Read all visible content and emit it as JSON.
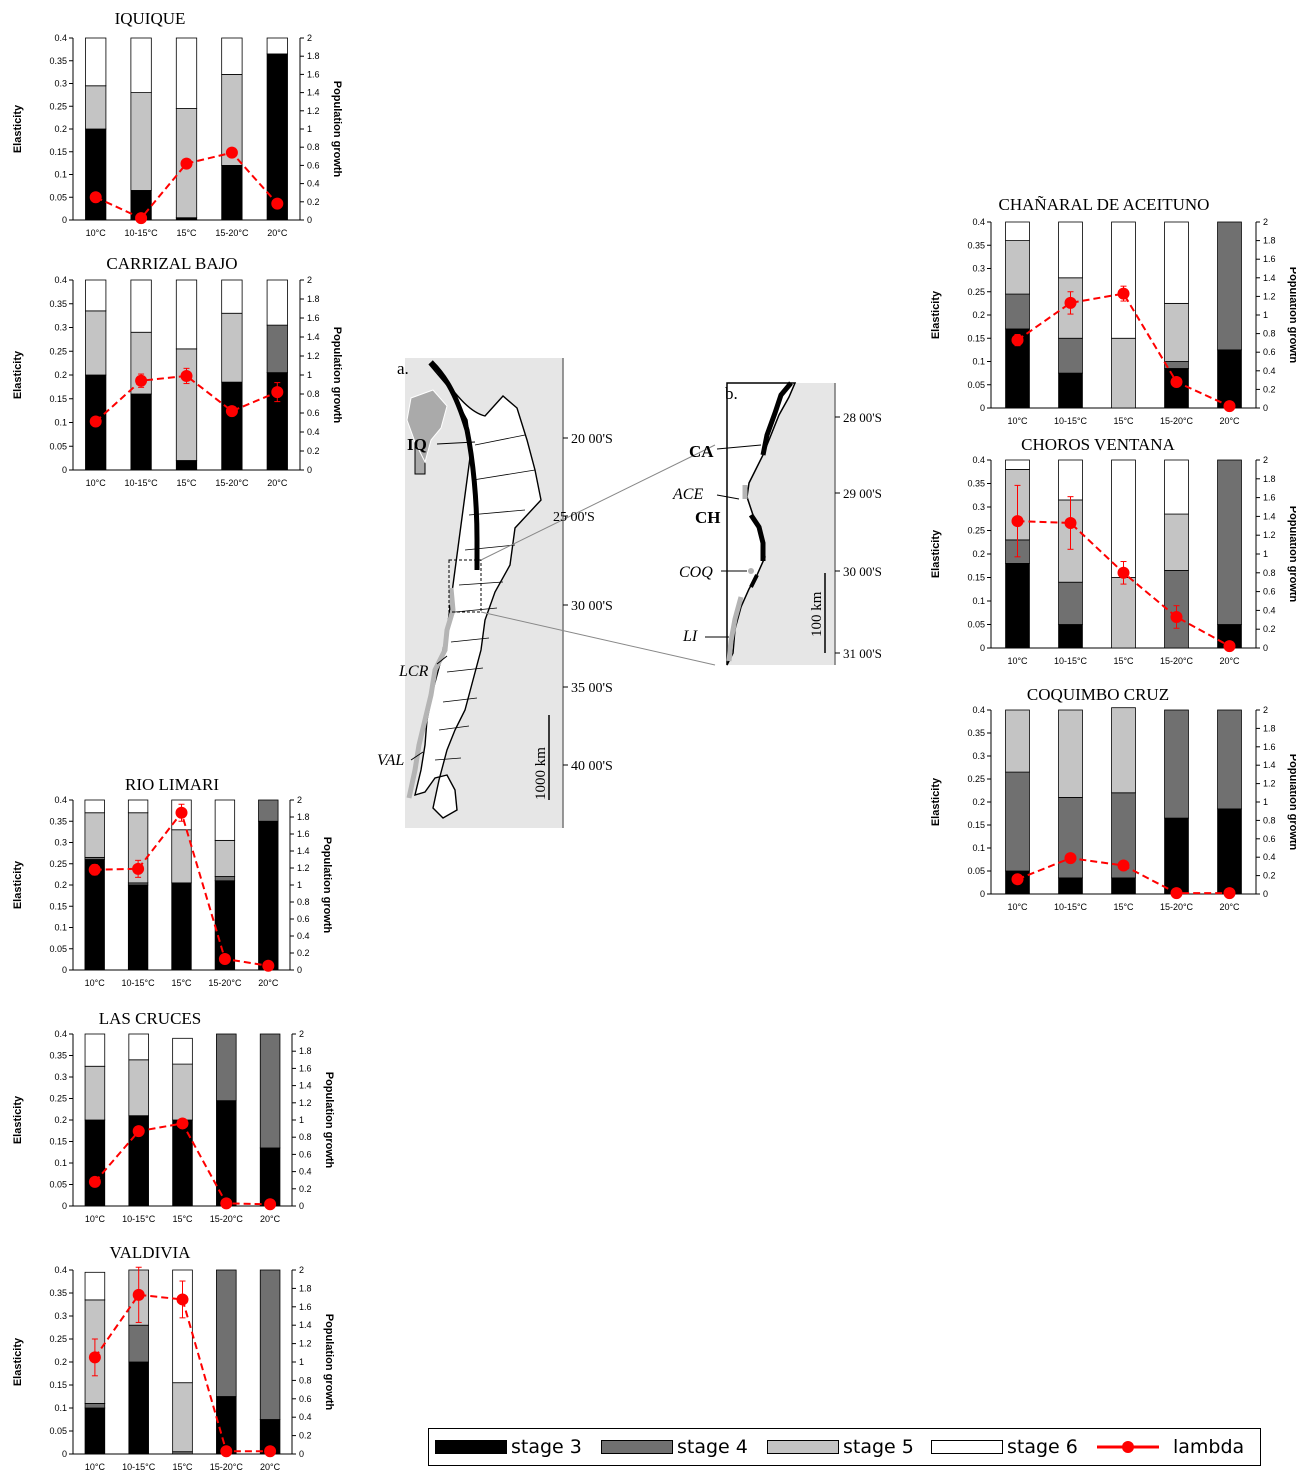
{
  "chart_data": [
    {
      "type": "bar",
      "title": "IQUIQUE",
      "categories": [
        "10°C",
        "10-15°C",
        "15°C",
        "15-20°C",
        "20°C"
      ],
      "ylabel": "Elasticity",
      "y2label": "Population growth",
      "ylim": [
        0,
        0.4
      ],
      "y2lim": [
        0,
        2
      ],
      "yticks": [
        "0",
        "0.05",
        "0.1",
        "0.15",
        "0.2",
        "0.25",
        "0.3",
        "0.35",
        "0.4"
      ],
      "y2ticks": [
        "0",
        "0.2",
        "0.4",
        "0.6",
        "0.8",
        "1",
        "1.2",
        "1.4",
        "1.6",
        "1.8",
        "2"
      ],
      "stacked": true,
      "series": [
        {
          "name": "stage 3",
          "values": [
            0.2,
            0.065,
            0.005,
            0.12,
            0.365
          ]
        },
        {
          "name": "stage 4",
          "values": [
            0.0,
            0.0,
            0.0,
            0.0,
            0.0
          ]
        },
        {
          "name": "stage 5",
          "values": [
            0.095,
            0.215,
            0.24,
            0.2,
            0.0
          ]
        },
        {
          "name": "stage 6",
          "values": [
            0.105,
            0.12,
            0.155,
            0.08,
            0.035
          ]
        }
      ],
      "lambda": {
        "name": "lambda",
        "values": [
          0.25,
          0.02,
          0.62,
          0.74,
          0.18
        ],
        "errors": [
          0,
          0,
          0,
          0,
          0
        ]
      }
    },
    {
      "type": "bar",
      "title": "CARRIZAL BAJO",
      "categories": [
        "10°C",
        "10-15°C",
        "15°C",
        "15-20°C",
        "20°C"
      ],
      "ylabel": "Elasticity",
      "y2label": "Population growth",
      "ylim": [
        0,
        0.4
      ],
      "y2lim": [
        0,
        2
      ],
      "yticks": [
        "0",
        "0.05",
        "0.1",
        "0.15",
        "0.2",
        "0.25",
        "0.3",
        "0.35",
        "0.4"
      ],
      "y2ticks": [
        "0",
        "0.2",
        "0.4",
        "0.6",
        "0.8",
        "1",
        "1.2",
        "1.4",
        "1.6",
        "1.8",
        "2"
      ],
      "stacked": true,
      "series": [
        {
          "name": "stage 3",
          "values": [
            0.2,
            0.16,
            0.02,
            0.185,
            0.205
          ]
        },
        {
          "name": "stage 4",
          "values": [
            0.0,
            0.0,
            0.0,
            0.0,
            0.1
          ]
        },
        {
          "name": "stage 5",
          "values": [
            0.135,
            0.13,
            0.235,
            0.145,
            0.0
          ]
        },
        {
          "name": "stage 6",
          "values": [
            0.065,
            0.11,
            0.145,
            0.07,
            0.095
          ]
        }
      ],
      "lambda": {
        "name": "lambda",
        "values": [
          0.51,
          0.94,
          0.99,
          0.62,
          0.82
        ],
        "errors": [
          0,
          0.07,
          0.08,
          0,
          0.1
        ]
      }
    },
    {
      "type": "bar",
      "title": "RIO LIMARI",
      "categories": [
        "10°C",
        "10-15°C",
        "15°C",
        "15-20°C",
        "20°C"
      ],
      "ylabel": "Elasticity",
      "y2label": "Population growth",
      "ylim": [
        0,
        0.4
      ],
      "y2lim": [
        0,
        2
      ],
      "yticks": [
        "0",
        "0.05",
        "0.1",
        "0.15",
        "0.2",
        "0.25",
        "0.3",
        "0.35",
        "0.4"
      ],
      "y2ticks": [
        "0",
        "0.2",
        "0.4",
        "0.6",
        "0.8",
        "1",
        "1.2",
        "1.4",
        "1.6",
        "1.8",
        "2"
      ],
      "stacked": true,
      "series": [
        {
          "name": "stage 3",
          "values": [
            0.26,
            0.2,
            0.205,
            0.21,
            0.35
          ]
        },
        {
          "name": "stage 4",
          "values": [
            0.005,
            0.005,
            0.0,
            0.01,
            0.05
          ]
        },
        {
          "name": "stage 5",
          "values": [
            0.105,
            0.165,
            0.125,
            0.085,
            0.0
          ]
        },
        {
          "name": "stage 6",
          "values": [
            0.03,
            0.03,
            0.07,
            0.095,
            0.0
          ]
        }
      ],
      "lambda": {
        "name": "lambda",
        "values": [
          1.18,
          1.19,
          1.85,
          0.13,
          0.05
        ],
        "errors": [
          0.06,
          0.1,
          0.1,
          0,
          0
        ]
      }
    },
    {
      "type": "bar",
      "title": "LAS CRUCES",
      "categories": [
        "10°C",
        "10-15°C",
        "15°C",
        "15-20°C",
        "20°C"
      ],
      "ylabel": "Elasticity",
      "y2label": "Population growth",
      "ylim": [
        0,
        0.4
      ],
      "y2lim": [
        0,
        2
      ],
      "yticks": [
        "0",
        "0.05",
        "0.1",
        "0.15",
        "0.2",
        "0.25",
        "0.3",
        "0.35",
        "0.4"
      ],
      "y2ticks": [
        "0",
        "0.2",
        "0.4",
        "0.6",
        "0.8",
        "1",
        "1.2",
        "1.4",
        "1.6",
        "1.8",
        "2"
      ],
      "stacked": true,
      "series": [
        {
          "name": "stage 3",
          "values": [
            0.2,
            0.21,
            0.2,
            0.245,
            0.135
          ]
        },
        {
          "name": "stage 4",
          "values": [
            0.0,
            0.0,
            0.0,
            0.155,
            0.265
          ]
        },
        {
          "name": "stage 5",
          "values": [
            0.125,
            0.13,
            0.13,
            0.0,
            0.0
          ]
        },
        {
          "name": "stage 6",
          "values": [
            0.075,
            0.06,
            0.06,
            0.0,
            0.0
          ]
        }
      ],
      "lambda": {
        "name": "lambda",
        "values": [
          0.28,
          0.87,
          0.96,
          0.03,
          0.02
        ],
        "errors": [
          0,
          0,
          0.05,
          0,
          0
        ]
      }
    },
    {
      "type": "bar",
      "title": "VALDIVIA",
      "categories": [
        "10°C",
        "10-15°C",
        "15°C",
        "15-20°C",
        "20°C"
      ],
      "ylabel": "Elasticity",
      "y2label": "Population growth",
      "ylim": [
        0,
        0.4
      ],
      "y2lim": [
        0,
        2
      ],
      "yticks": [
        "0",
        "0.05",
        "0.1",
        "0.15",
        "0.2",
        "0.25",
        "0.3",
        "0.35",
        "0.4"
      ],
      "y2ticks": [
        "0",
        "0.2",
        "0.4",
        "0.6",
        "0.8",
        "1",
        "1.2",
        "1.4",
        "1.6",
        "1.8",
        "2"
      ],
      "stacked": true,
      "series": [
        {
          "name": "stage 3",
          "values": [
            0.1,
            0.2,
            0.0,
            0.125,
            0.075
          ]
        },
        {
          "name": "stage 4",
          "values": [
            0.01,
            0.08,
            0.005,
            0.275,
            0.325
          ]
        },
        {
          "name": "stage 5",
          "values": [
            0.225,
            0.12,
            0.15,
            0.0,
            0.0
          ]
        },
        {
          "name": "stage 6",
          "values": [
            0.06,
            0.0,
            0.245,
            0.0,
            0.0
          ]
        }
      ],
      "lambda": {
        "name": "lambda",
        "values": [
          1.05,
          1.73,
          1.68,
          0.03,
          0.03
        ],
        "errors": [
          0.2,
          0.3,
          0.2,
          0,
          0
        ]
      }
    },
    {
      "type": "bar",
      "title": "CHAÑARAL DE ACEITUNO",
      "categories": [
        "10°C",
        "10-15°C",
        "15°C",
        "15-20°C",
        "20°C"
      ],
      "ylabel": "Elasticity",
      "y2label": "Population growth",
      "ylim": [
        0,
        0.4
      ],
      "y2lim": [
        0,
        2
      ],
      "yticks": [
        "0",
        "0.05",
        "0.1",
        "0.15",
        "0.2",
        "0.25",
        "0.3",
        "0.35",
        "0.4"
      ],
      "y2ticks": [
        "0",
        "0.2",
        "0.4",
        "0.6",
        "0.8",
        "1",
        "1.2",
        "1.4",
        "1.6",
        "1.8",
        "2"
      ],
      "stacked": true,
      "series": [
        {
          "name": "stage 3",
          "values": [
            0.17,
            0.075,
            0.0,
            0.085,
            0.125
          ]
        },
        {
          "name": "stage 4",
          "values": [
            0.075,
            0.075,
            0.0,
            0.015,
            0.275
          ]
        },
        {
          "name": "stage 5",
          "values": [
            0.115,
            0.13,
            0.15,
            0.125,
            0.0
          ]
        },
        {
          "name": "stage 6",
          "values": [
            0.04,
            0.12,
            0.25,
            0.175,
            0.0
          ]
        }
      ],
      "lambda": {
        "name": "lambda",
        "values": [
          0.73,
          1.13,
          1.23,
          0.28,
          0.02
        ],
        "errors": [
          0.06,
          0.12,
          0.08,
          0,
          0
        ]
      }
    },
    {
      "type": "bar",
      "title": "CHOROS VENTANA",
      "categories": [
        "10°C",
        "10-15°C",
        "15°C",
        "15-20°C",
        "20°C"
      ],
      "ylabel": "Elasticity",
      "y2label": "Population growth",
      "ylim": [
        0,
        0.4
      ],
      "y2lim": [
        0,
        2
      ],
      "yticks": [
        "0",
        "0.05",
        "0.1",
        "0.15",
        "0.2",
        "0.25",
        "0.3",
        "0.35",
        "0.4"
      ],
      "y2ticks": [
        "0",
        "0.2",
        "0.4",
        "0.6",
        "0.8",
        "1",
        "1.2",
        "1.4",
        "1.6",
        "1.8",
        "2"
      ],
      "stacked": true,
      "series": [
        {
          "name": "stage 3",
          "values": [
            0.18,
            0.05,
            0.0,
            0.0,
            0.05
          ]
        },
        {
          "name": "stage 4",
          "values": [
            0.05,
            0.09,
            0.0,
            0.165,
            0.35
          ]
        },
        {
          "name": "stage 5",
          "values": [
            0.15,
            0.175,
            0.15,
            0.12,
            0.0
          ]
        },
        {
          "name": "stage 6",
          "values": [
            0.02,
            0.085,
            0.25,
            0.115,
            0.0
          ]
        }
      ],
      "lambda": {
        "name": "lambda",
        "values": [
          1.35,
          1.33,
          0.8,
          0.33,
          0.02
        ],
        "errors": [
          0.38,
          0.28,
          0.12,
          0.12,
          0
        ]
      }
    },
    {
      "type": "bar",
      "title": "COQUIMBO CRUZ",
      "categories": [
        "10°C",
        "10-15°C",
        "15°C",
        "15-20°C",
        "20°C"
      ],
      "ylabel": "Elasticity",
      "y2label": "Population growth",
      "ylim": [
        0,
        0.4
      ],
      "y2lim": [
        0,
        2
      ],
      "yticks": [
        "0",
        "0.05",
        "0.1",
        "0.15",
        "0.2",
        "0.25",
        "0.3",
        "0.35",
        "0.4"
      ],
      "y2ticks": [
        "0",
        "0.2",
        "0.4",
        "0.6",
        "0.8",
        "1",
        "1.2",
        "1.4",
        "1.6",
        "1.8",
        "2"
      ],
      "stacked": true,
      "series": [
        {
          "name": "stage 3",
          "values": [
            0.05,
            0.035,
            0.035,
            0.165,
            0.185
          ]
        },
        {
          "name": "stage 4",
          "values": [
            0.215,
            0.175,
            0.185,
            0.235,
            0.215
          ]
        },
        {
          "name": "stage 5",
          "values": [
            0.135,
            0.19,
            0.185,
            0.0,
            0.0
          ]
        },
        {
          "name": "stage 6",
          "values": [
            0.0,
            0.0,
            0.0,
            0.0,
            0.0
          ]
        }
      ],
      "lambda": {
        "name": "lambda",
        "values": [
          0.16,
          0.39,
          0.31,
          0.01,
          0.01
        ],
        "errors": [
          0,
          0,
          0,
          0,
          0
        ]
      }
    }
  ],
  "map": {
    "a": {
      "letter": "a.",
      "sites": [
        "IQ",
        "LCR",
        "VAL"
      ],
      "lat_labels": [
        "20 00'S",
        "25 00'S",
        "30 00'S",
        "35 00'S",
        "40 00'S"
      ],
      "scale": "1000 km"
    },
    "b": {
      "letter": "b.",
      "sites": [
        "CA",
        "ACE",
        "CH",
        "COQ",
        "LI"
      ],
      "lat_labels": [
        "28 00'S",
        "29 00'S",
        "30 00'S",
        "31 00'S"
      ],
      "scale": "100 km"
    }
  },
  "legend": {
    "items": [
      "stage 3",
      "stage 4",
      "stage 5",
      "stage 6",
      "lambda"
    ]
  },
  "colors": {
    "stage3": "#000000",
    "stage4": "#707070",
    "stage5": "#c4c4c4",
    "stage6": "#ffffff",
    "lambda": "#ff0000",
    "map_bg": "#e6e6e6"
  }
}
